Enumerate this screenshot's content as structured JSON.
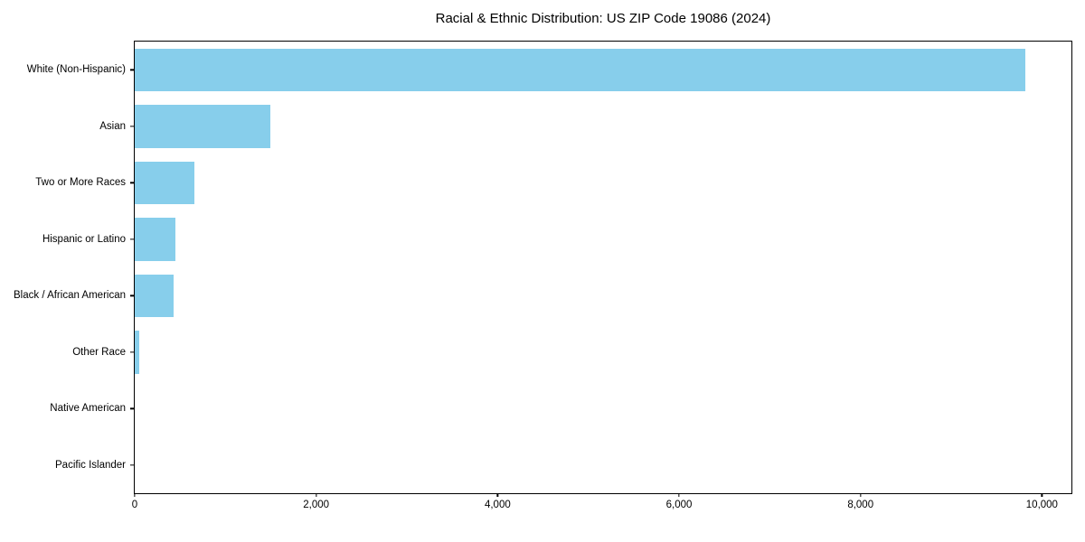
{
  "chart_data": {
    "type": "bar",
    "orientation": "horizontal",
    "title": "Racial & Ethnic Distribution: US ZIP Code 19086 (2024)",
    "xlabel": "",
    "ylabel": "",
    "categories": [
      "White (Non-Hispanic)",
      "Asian",
      "Two or More Races",
      "Hispanic or Latino",
      "Black / African American",
      "Other Race",
      "Native American",
      "Pacific Islander"
    ],
    "values": [
      9820,
      1490,
      660,
      450,
      430,
      50,
      0,
      0
    ],
    "xlim": [
      0,
      10325
    ],
    "x_ticks": [
      {
        "value": 0,
        "label": "0"
      },
      {
        "value": 2000,
        "label": "2,000"
      },
      {
        "value": 4000,
        "label": "4,000"
      },
      {
        "value": 6000,
        "label": "6,000"
      },
      {
        "value": 8000,
        "label": "8,000"
      },
      {
        "value": 10000,
        "label": "10,000"
      }
    ],
    "bar_color": "#87CEEB",
    "grid": false,
    "legend_position": "none",
    "frame": "full-box"
  }
}
